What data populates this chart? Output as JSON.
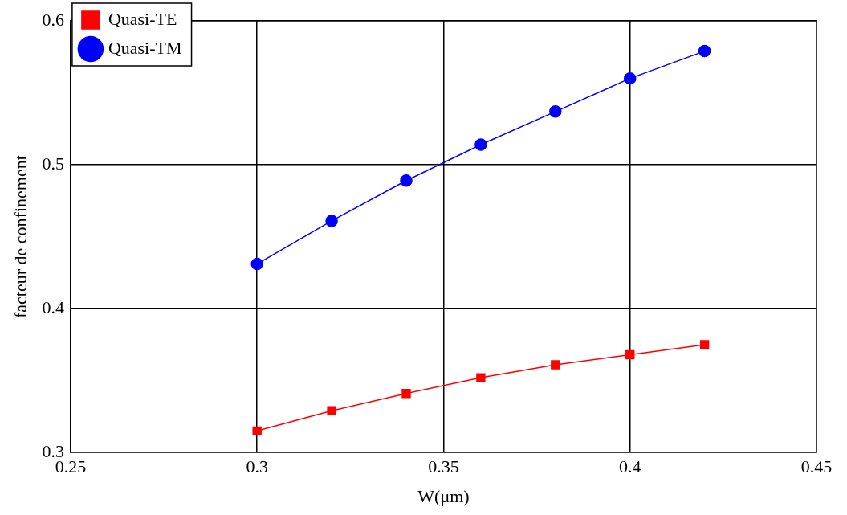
{
  "chart_data": {
    "type": "line",
    "xlabel": "W(μm)",
    "ylabel": "facteur de confinement",
    "x": [
      0.3,
      0.32,
      0.34,
      0.36,
      0.38,
      0.4,
      0.42
    ],
    "series": [
      {
        "name": "Quasi-TE",
        "color": "#ff0000",
        "marker": "square",
        "values": [
          0.315,
          0.329,
          0.341,
          0.352,
          0.361,
          0.368,
          0.375
        ]
      },
      {
        "name": "Quasi-TM",
        "color": "#0000ff",
        "marker": "circle",
        "values": [
          0.431,
          0.461,
          0.489,
          0.514,
          0.537,
          0.56,
          0.579
        ]
      }
    ],
    "xlim": [
      0.25,
      0.45
    ],
    "xticks": [
      0.25,
      0.3,
      0.35,
      0.4,
      0.45
    ],
    "ylim": [
      0.3,
      0.6
    ],
    "yticks": [
      0.3,
      0.4,
      0.5,
      0.6
    ],
    "grid": true,
    "legend": "top left",
    "line_style": "solid"
  }
}
